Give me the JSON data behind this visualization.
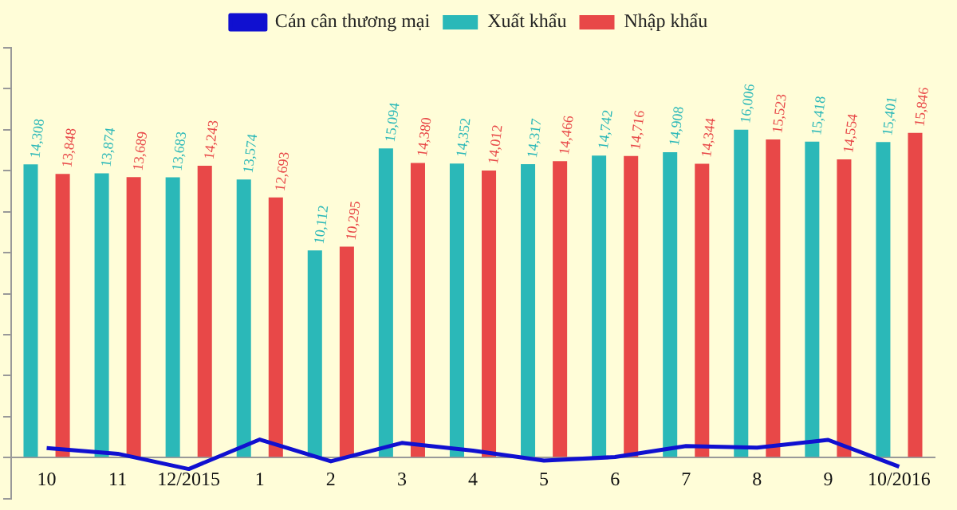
{
  "chart_data": {
    "type": "bar",
    "categories": [
      "10",
      "11",
      "12/2015",
      "1",
      "2",
      "3",
      "4",
      "5",
      "6",
      "7",
      "8",
      "9",
      "10/2016"
    ],
    "series": [
      {
        "name": "Xuất khẩu",
        "color": "#2bb8b8",
        "values": [
          14308,
          13874,
          13683,
          13574,
          10112,
          15094,
          14352,
          14317,
          14742,
          14908,
          16006,
          15418,
          15401
        ],
        "value_labels": [
          "14,308",
          "13,874",
          "13,683",
          "13,574",
          "10,112",
          "15,094",
          "14,352",
          "14,317",
          "14,742",
          "14,908",
          "16,006",
          "15,418",
          "15,401"
        ]
      },
      {
        "name": "Nhập khẩu",
        "color": "#e84848",
        "values": [
          13848,
          13689,
          14243,
          12693,
          10295,
          14380,
          14012,
          14466,
          14716,
          14344,
          15523,
          14554,
          15846
        ],
        "value_labels": [
          "13,848",
          "13,689",
          "14,243",
          "12,693",
          "10,295",
          "14,380",
          "14,012",
          "14,466",
          "14,716",
          "14,344",
          "15,523",
          "14,554",
          "15,846"
        ]
      },
      {
        "name": "Cán cân thương mại",
        "type": "line",
        "color": "#1010d0",
        "values": [
          460,
          185,
          -560,
          881,
          -183,
          714,
          340,
          -149,
          26,
          564,
          483,
          864,
          -445
        ]
      }
    ],
    "ylim": [
      -2000,
      20000
    ],
    "yticks": [
      {
        "value": -2000,
        "label": null
      },
      {
        "value": 0,
        "label": null
      },
      {
        "value": 2000,
        "label": null
      },
      {
        "value": 4000,
        "label": null
      },
      {
        "value": 6000,
        "label": null
      },
      {
        "value": 8000,
        "label": null
      },
      {
        "value": 10000,
        "label": null
      },
      {
        "value": 12000,
        "label": null
      },
      {
        "value": 14000,
        "label": null
      },
      {
        "value": 16000,
        "label": null
      },
      {
        "value": 18000,
        "label": null
      },
      {
        "value": 20000,
        "label": null
      }
    ],
    "tick_labels": "x",
    "legend": "top",
    "grid": false,
    "marker": "none",
    "line_style": "solid"
  }
}
